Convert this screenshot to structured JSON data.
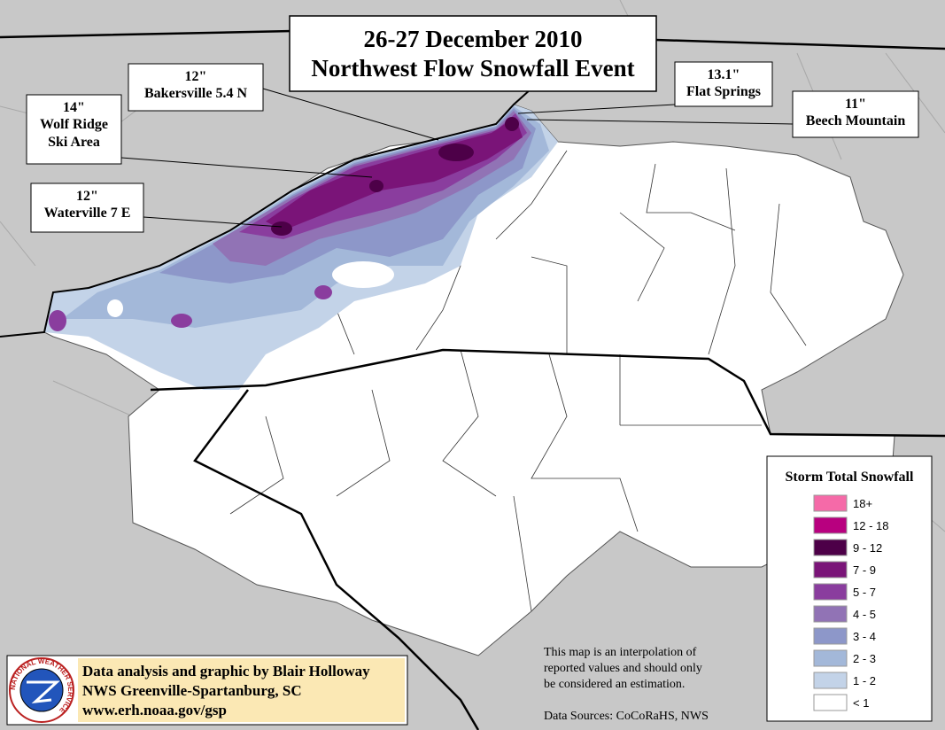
{
  "title": {
    "lines": [
      "26-27 December 2010",
      "Northwest Flow Snowfall Event"
    ]
  },
  "stations": [
    {
      "amount": "12\"",
      "name_lines": [
        "Bakersville 5.4 N"
      ]
    },
    {
      "amount": "13.1\"",
      "name_lines": [
        "Flat Springs"
      ]
    },
    {
      "amount": "11\"",
      "name_lines": [
        "Beech Mountain"
      ]
    },
    {
      "amount": "14\"",
      "name_lines": [
        "Wolf Ridge",
        "Ski Area"
      ]
    },
    {
      "amount": "12\"",
      "name_lines": [
        "Waterville 7 E"
      ]
    }
  ],
  "legend": {
    "title": "Storm Total Snowfall",
    "items": [
      {
        "label": "18+",
        "color": "#f56aa8"
      },
      {
        "label": "12 - 18",
        "color": "#b8007f"
      },
      {
        "label": "9 - 12",
        "color": "#4d0048"
      },
      {
        "label": "7 - 9",
        "color": "#7a1478"
      },
      {
        "label": "5 - 7",
        "color": "#8a3d9e"
      },
      {
        "label": "4 - 5",
        "color": "#9173b5"
      },
      {
        "label": "3 - 4",
        "color": "#8d97c9"
      },
      {
        "label": "2 - 3",
        "color": "#a3b8d9"
      },
      {
        "label": "1 - 2",
        "color": "#c3d3e8"
      },
      {
        "label": "< 1",
        "color": "#ffffff"
      }
    ]
  },
  "credit": {
    "logo_text": "NATIONAL WEATHER SERVICE",
    "lines": [
      "Data analysis and graphic by Blair Holloway",
      "NWS Greenville-Spartanburg, SC",
      "www.erh.noaa.gov/gsp"
    ]
  },
  "note": {
    "lines": [
      "This map is an interpolation of",
      "reported values and should only",
      "be considered an estimation."
    ]
  },
  "sources": "Data Sources: CoCoRaHS, NWS"
}
